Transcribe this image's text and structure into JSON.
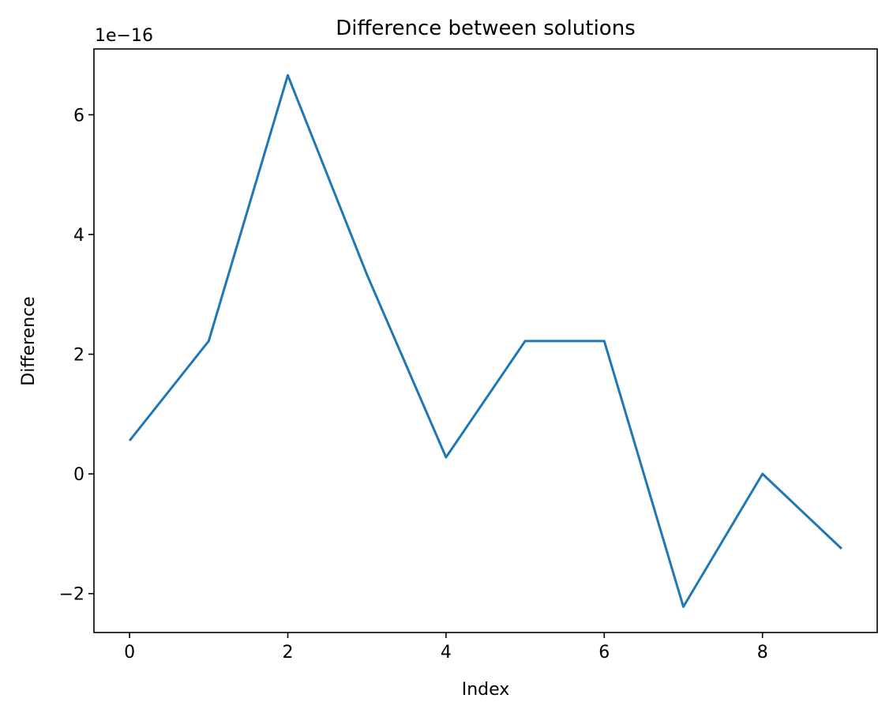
{
  "chart_data": {
    "type": "line",
    "title": "Difference between solutions",
    "xlabel": "Index",
    "ylabel": "Difference",
    "y_offset_label": "1e−16",
    "x": [
      0,
      1,
      2,
      3,
      4,
      5,
      6,
      7,
      8,
      9
    ],
    "series": [
      {
        "values": [
          5.55e-17,
          2.22e-16,
          6.66e-16,
          3.33e-16,
          2.78e-17,
          2.22e-16,
          2.22e-16,
          -2.22e-16,
          0.0,
          -1.25e-16
        ]
      }
    ],
    "xlim": [
      -0.45,
      9.45
    ],
    "ylim": [
      -2.65e-16,
      7.1e-16
    ],
    "x_ticks": [
      0,
      2,
      4,
      6,
      8
    ],
    "x_tick_labels": [
      "0",
      "2",
      "4",
      "6",
      "8"
    ],
    "y_ticks": [
      -2,
      0,
      2,
      4,
      6
    ],
    "y_tick_labels": [
      "−2",
      "0",
      "2",
      "4",
      "6"
    ],
    "y_tick_scale": 1e-16,
    "grid": false,
    "line_color": "#1f77b4"
  }
}
